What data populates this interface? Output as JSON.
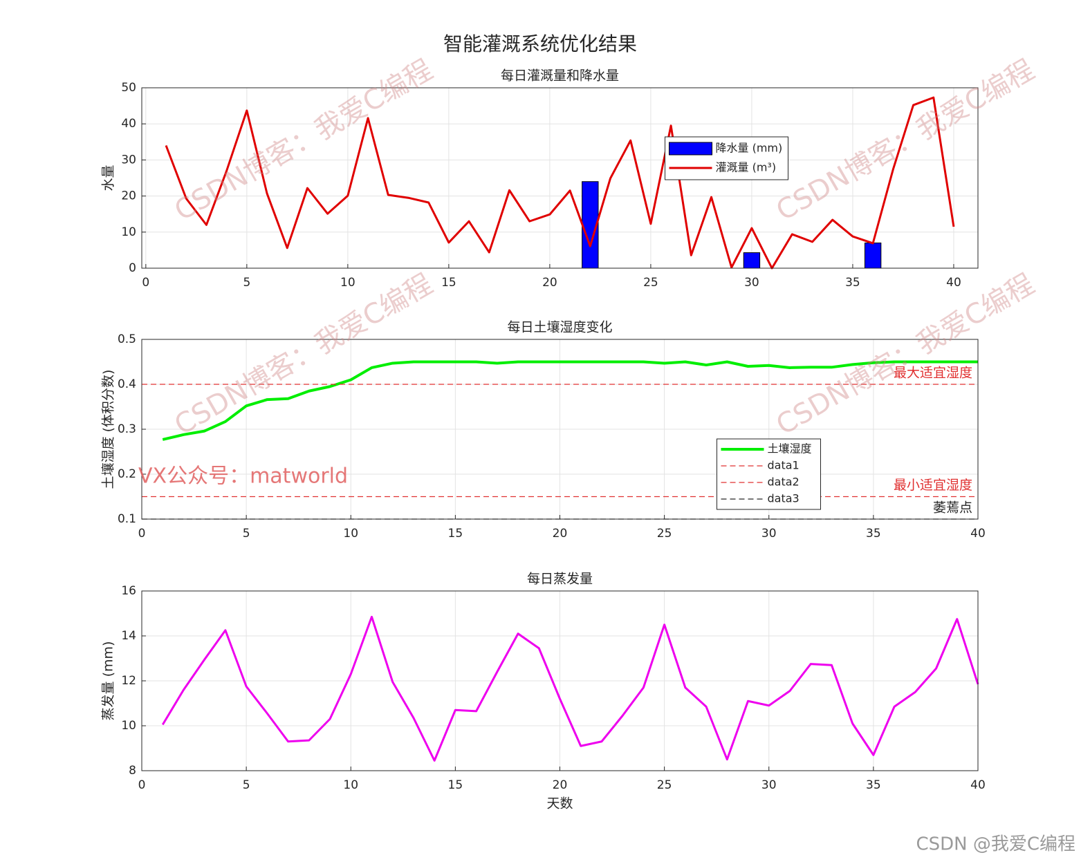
{
  "title": "智能灌溉系统优化结果",
  "watermarks": [
    "CSDN博客：我爱C编程",
    "CSDN博客：我爱C编程",
    "CSDN博客：我爱C编程",
    "CSDN博客：我爱C编程",
    "VX公众号：matworld",
    "CSDN @我爱C编程"
  ],
  "chart_data": [
    {
      "type": "combo",
      "title": "每日灌溉量和降水量",
      "ylabel": "水量",
      "x": [
        1,
        2,
        3,
        4,
        5,
        6,
        7,
        8,
        9,
        10,
        11,
        12,
        13,
        14,
        15,
        16,
        17,
        18,
        19,
        20,
        21,
        22,
        23,
        24,
        25,
        26,
        27,
        28,
        29,
        30,
        31,
        32,
        33,
        34,
        35,
        36,
        37,
        38,
        39,
        40
      ],
      "xlim": [
        -0.2,
        41.2
      ],
      "xticks": [
        0,
        5,
        10,
        15,
        20,
        25,
        30,
        35,
        40
      ],
      "ylim": [
        0,
        50
      ],
      "yticks": [
        0,
        10,
        20,
        30,
        40,
        50
      ],
      "grid": true,
      "legend": "north",
      "series": [
        {
          "name": "降水量 (mm)",
          "kind": "bar",
          "color": "#0000ff",
          "values": [
            0,
            0,
            0,
            0,
            0,
            0,
            0,
            0,
            0,
            0,
            0,
            0,
            0,
            0,
            0,
            0,
            0,
            0,
            0,
            0,
            0,
            24,
            0,
            0,
            0,
            0,
            0,
            0,
            0,
            4.3,
            0,
            0,
            0,
            0,
            0,
            7,
            0,
            0,
            0,
            0
          ]
        },
        {
          "name": "灌溉量 (m³)",
          "kind": "line",
          "color": "#e00000",
          "values": [
            34,
            19.3,
            12,
            27,
            43.7,
            20.7,
            5.6,
            22.2,
            15.1,
            20.1,
            41.6,
            20.3,
            19.5,
            18.2,
            7.1,
            13,
            4.4,
            21.6,
            13,
            14.9,
            21.5,
            6.1,
            24.9,
            35.4,
            12.3,
            39.5,
            3.6,
            19.7,
            0.2,
            11.1,
            0,
            9.4,
            7.3,
            13.4,
            8.8,
            6.9,
            27.4,
            45.2,
            47.3,
            11.5
          ]
        }
      ]
    },
    {
      "type": "line",
      "title": "每日土壤湿度变化",
      "ylabel": "土壤湿度 (体积分数)",
      "x": [
        1,
        2,
        3,
        4,
        5,
        6,
        7,
        8,
        9,
        10,
        11,
        12,
        13,
        14,
        15,
        16,
        17,
        18,
        19,
        20,
        21,
        22,
        23,
        24,
        25,
        26,
        27,
        28,
        29,
        30,
        31,
        32,
        33,
        34,
        35,
        36,
        37,
        38,
        39,
        40
      ],
      "xlim": [
        0,
        40
      ],
      "xticks": [
        0,
        5,
        10,
        15,
        20,
        25,
        30,
        35,
        40
      ],
      "ylim": [
        0.1,
        0.5
      ],
      "yticks": [
        0.1,
        0.2,
        0.3,
        0.4,
        0.5
      ],
      "grid": true,
      "legend": "south",
      "series": [
        {
          "name": "土壤湿度",
          "color": "#00ee00",
          "values": [
            0.277,
            0.288,
            0.296,
            0.317,
            0.352,
            0.366,
            0.368,
            0.385,
            0.395,
            0.41,
            0.437,
            0.447,
            0.45,
            0.45,
            0.45,
            0.45,
            0.447,
            0.45,
            0.45,
            0.45,
            0.45,
            0.45,
            0.45,
            0.45,
            0.447,
            0.45,
            0.443,
            0.45,
            0.44,
            0.442,
            0.437,
            0.438,
            0.438,
            0.444,
            0.448,
            0.45,
            0.45,
            0.45,
            0.45,
            0.45
          ]
        }
      ],
      "hlines": [
        {
          "name": "data1",
          "value": 0.4,
          "color": "#e03030",
          "label": "最大适宜湿度"
        },
        {
          "name": "data2",
          "value": 0.15,
          "color": "#e03030",
          "label": "最小适宜湿度"
        },
        {
          "name": "data3",
          "value": 0.1,
          "color": "#262626",
          "label": "萎蔫点"
        }
      ]
    },
    {
      "type": "line",
      "title": "每日蒸发量",
      "ylabel": "蒸发量 (mm)",
      "xlabel": "天数",
      "x": [
        1,
        2,
        3,
        4,
        5,
        6,
        7,
        8,
        9,
        10,
        11,
        12,
        13,
        14,
        15,
        16,
        17,
        18,
        19,
        20,
        21,
        22,
        23,
        24,
        25,
        26,
        27,
        28,
        29,
        30,
        31,
        32,
        33,
        34,
        35,
        36,
        37,
        38,
        39,
        40
      ],
      "xlim": [
        0,
        40
      ],
      "xticks": [
        0,
        5,
        10,
        15,
        20,
        25,
        30,
        35,
        40
      ],
      "ylim": [
        8,
        16
      ],
      "yticks": [
        8,
        10,
        12,
        14,
        16
      ],
      "grid": true,
      "series": [
        {
          "color": "#ee00ee",
          "values": [
            10.05,
            11.6,
            12.95,
            14.25,
            11.75,
            10.55,
            9.3,
            9.35,
            10.3,
            12.3,
            14.85,
            11.95,
            10.35,
            8.45,
            10.7,
            10.65,
            12.4,
            14.1,
            13.45,
            11.2,
            9.1,
            9.3,
            10.45,
            11.7,
            14.5,
            11.7,
            10.85,
            8.5,
            11.1,
            10.9,
            11.55,
            12.75,
            12.7,
            10.1,
            8.7,
            10.85,
            11.5,
            12.55,
            14.75,
            11.85
          ]
        }
      ]
    }
  ]
}
